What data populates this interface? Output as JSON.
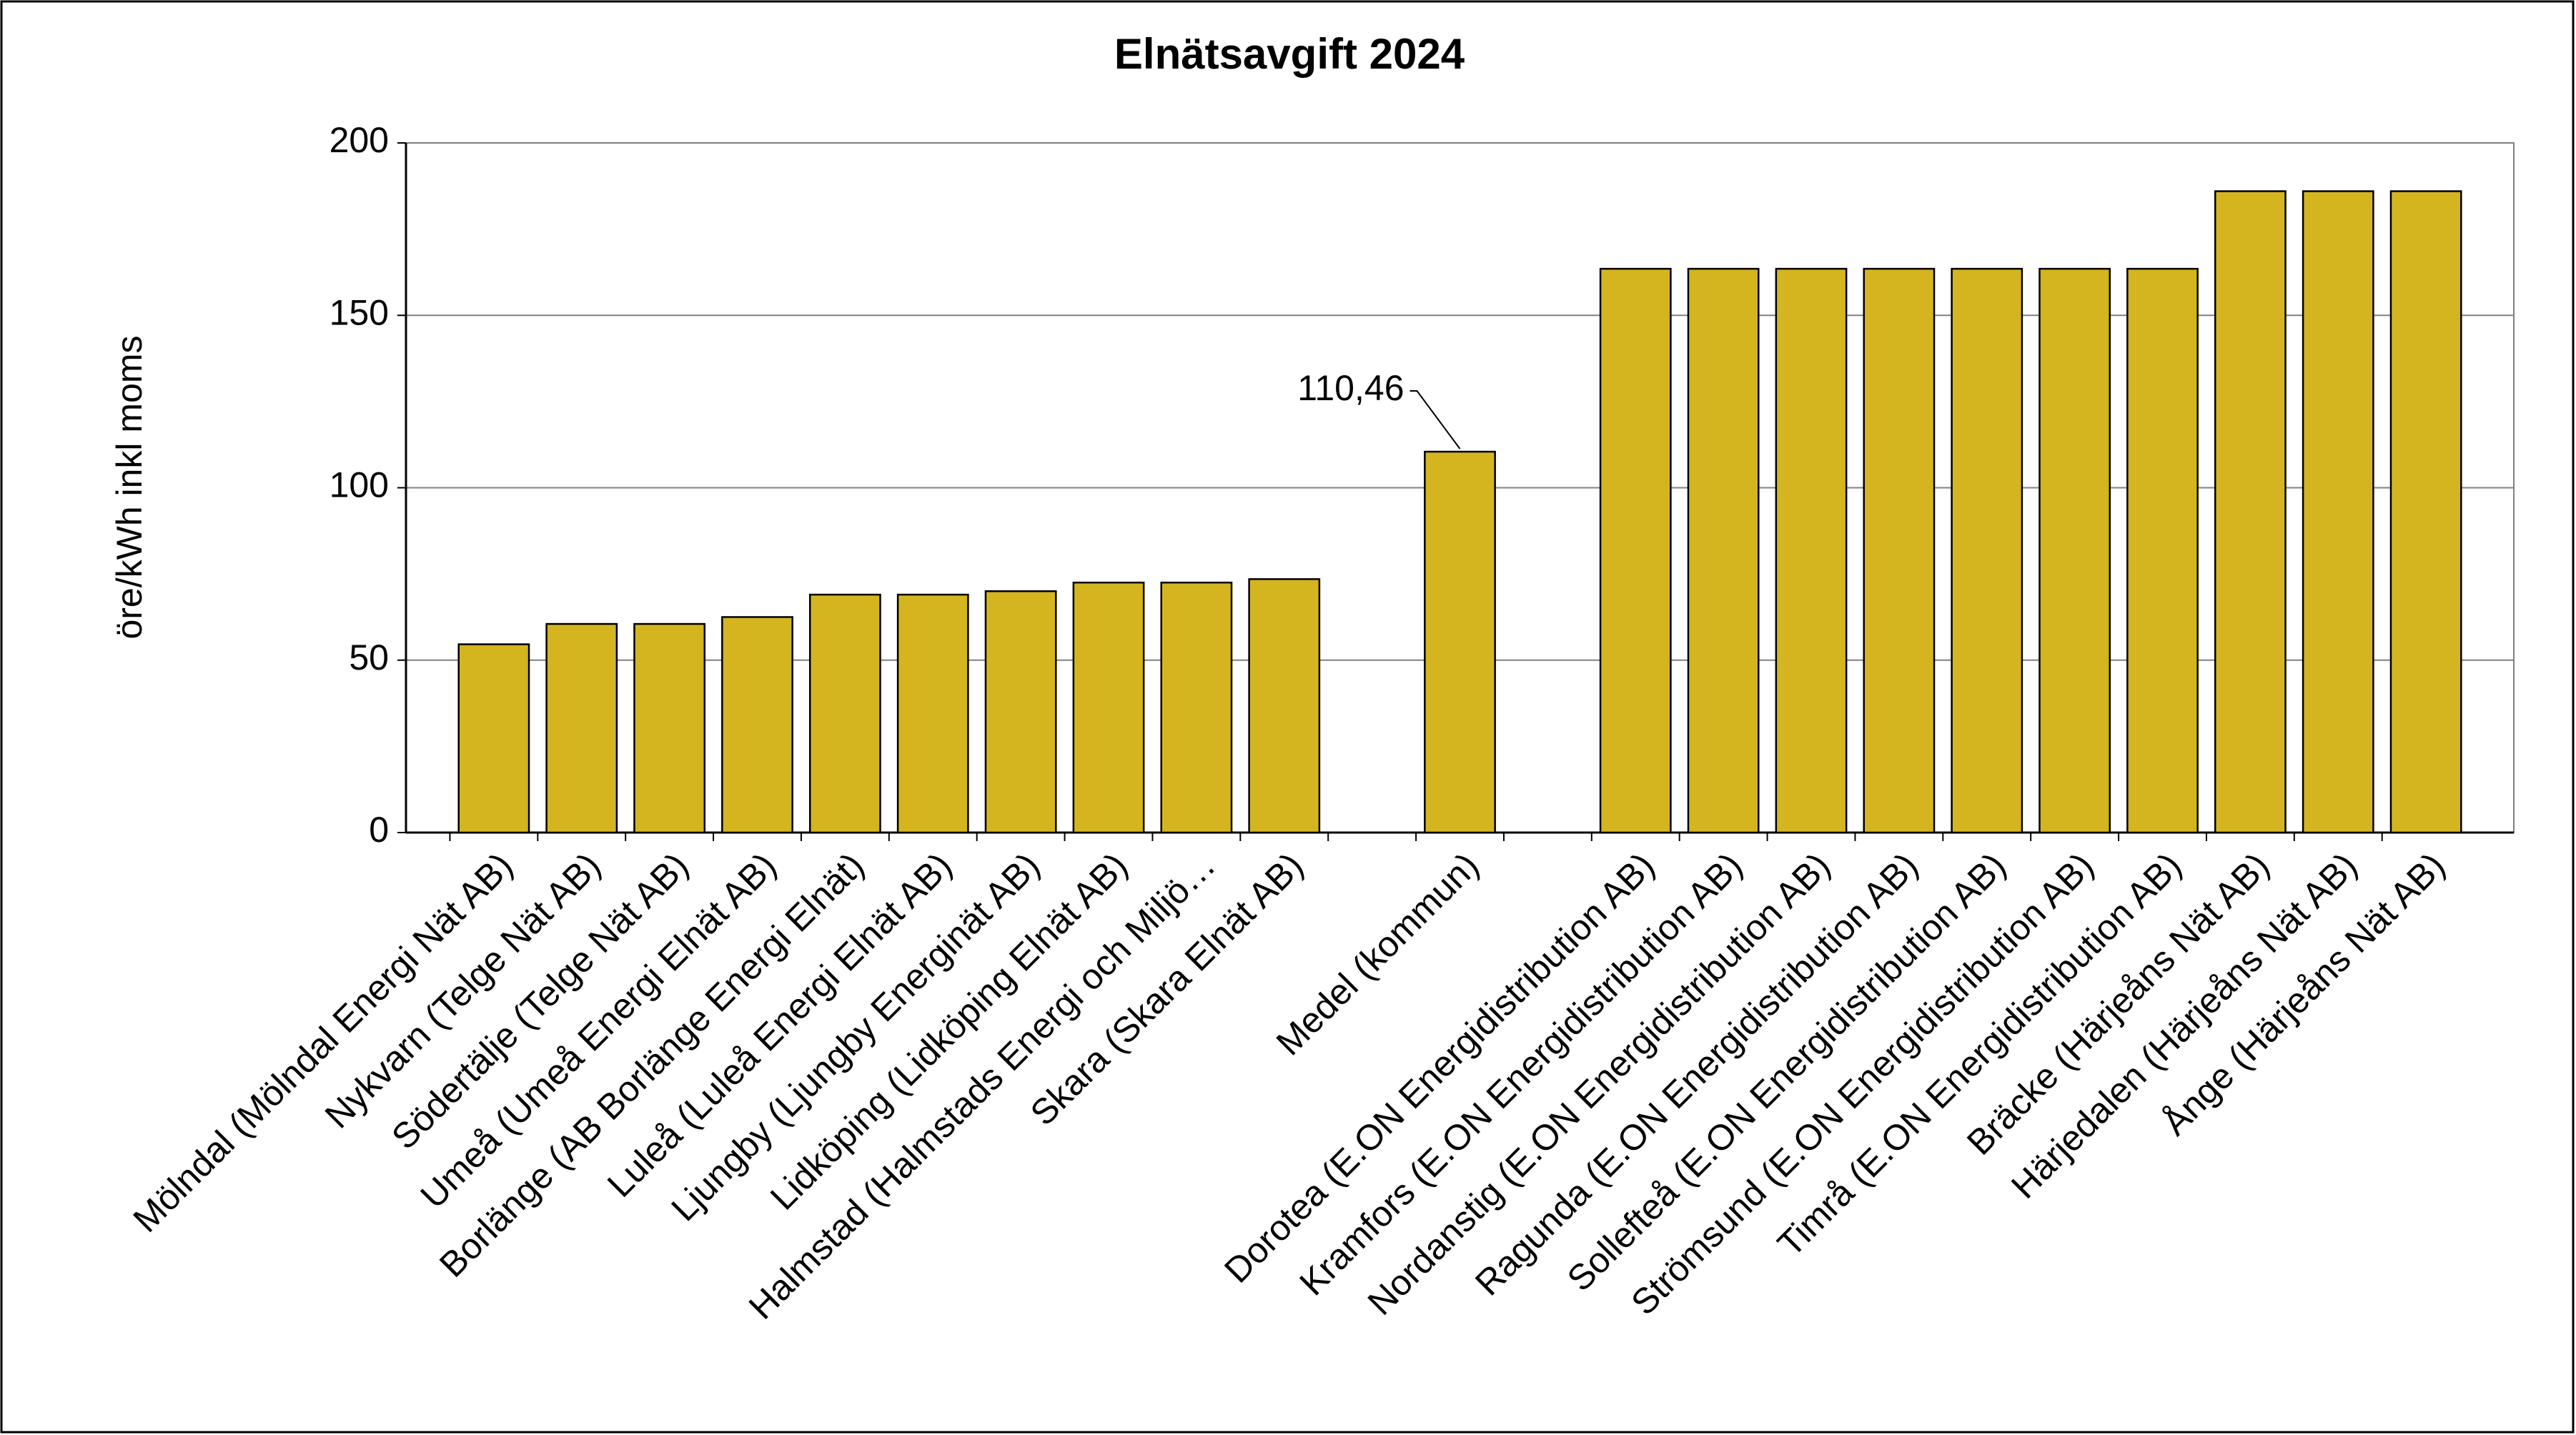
{
  "chart_data": {
    "type": "bar",
    "title": "Elnätsavgift 2024",
    "y_label": "öre/kWh inkl moms",
    "categories": [
      "Mölndal (Mölndal Energi Nät AB)",
      "Nykvarn (Telge Nät AB)",
      "Södertälje (Telge Nät AB)",
      "Umeå (Umeå Energi Elnät AB)",
      "Borlänge (AB Borlänge Energi Elnät)",
      "Luleå (Luleå Energi Elnät AB)",
      "Ljungby (Ljungby Energinät AB)",
      "Lidköping (Lidköping Elnät AB)",
      "Halmstad (Halmstads Energi och Miljö…",
      "Skara (Skara Elnät AB)",
      null,
      "Medel (kommun)",
      null,
      "Dorotea (E.ON Energidistribution AB)",
      "Kramfors (E.ON Energidistribution AB)",
      "Nordanstig (E.ON Energidistribution AB)",
      "Ragunda (E.ON Energidistribution AB)",
      "Sollefteå (E.ON Energidistribution AB)",
      "Strömsund (E.ON Energidistribution AB)",
      "Timrå (E.ON Energidistribution AB)",
      "Bräcke (Härjeåns Nät AB)",
      "Härjedalen (Härjeåns Nät AB)",
      "Ånge (Härjeåns Nät AB)"
    ],
    "values": [
      54.6,
      60.5,
      60.5,
      62.5,
      69,
      69,
      70,
      72.5,
      72.5,
      73.5,
      null,
      110.46,
      null,
      163.5,
      163.5,
      163.5,
      163.5,
      163.5,
      163.5,
      163.5,
      186,
      186,
      186
    ],
    "value_labels": [
      null,
      null,
      null,
      null,
      null,
      null,
      null,
      null,
      null,
      null,
      null,
      "110,46",
      null,
      null,
      null,
      null,
      null,
      null,
      null,
      null,
      null,
      null,
      null
    ],
    "color": "#d4b520",
    "ylim": [
      0,
      200
    ],
    "yticks": [
      0,
      50,
      100,
      150,
      200
    ],
    "grid": true
  }
}
